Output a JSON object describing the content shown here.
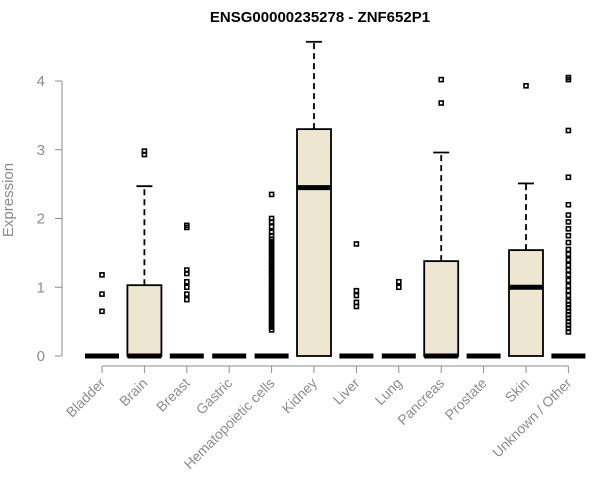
{
  "chart_data": {
    "type": "boxplot",
    "title": "ENSG00000235278 - ZNF652P1",
    "ylabel": "Expression",
    "xlabel": "",
    "ylim": [
      0,
      4.5
    ],
    "yticks": [
      0,
      1,
      2,
      3,
      4
    ],
    "box_fill": "#ede7d2",
    "axis_color": "#8c8c8c",
    "categories": [
      "Bladder",
      "Brain",
      "Breast",
      "Gastric",
      "Hematopoietic cells",
      "Kidney",
      "Liver",
      "Lung",
      "Pancreas",
      "Prostate",
      "Skin",
      "Unknown / Other"
    ],
    "boxes": [
      {
        "q1": 0,
        "median": 0,
        "q3": 0,
        "whisker_low": 0,
        "whisker_high": 0,
        "outliers": [
          0.65,
          0.9,
          1.18
        ]
      },
      {
        "q1": 0,
        "median": 0,
        "q3": 1.03,
        "whisker_low": 0,
        "whisker_high": 2.47,
        "outliers": [
          2.93,
          2.98
        ]
      },
      {
        "q1": 0,
        "median": 0,
        "q3": 0,
        "whisker_low": 0,
        "whisker_high": 0,
        "outliers": [
          0.82,
          0.9,
          1.0,
          1.08,
          1.2,
          1.25,
          1.87,
          1.9
        ]
      },
      {
        "q1": 0,
        "median": 0,
        "q3": 0,
        "whisker_low": 0,
        "whisker_high": 0,
        "outliers": []
      },
      {
        "q1": 0,
        "median": 0,
        "q3": 0,
        "whisker_low": 0,
        "whisker_high": 0,
        "outliers": [
          0.38,
          0.42,
          0.46,
          0.5,
          0.54,
          0.58,
          0.62,
          0.66,
          0.7,
          0.74,
          0.78,
          0.82,
          0.86,
          0.9,
          0.94,
          0.98,
          1.02,
          1.06,
          1.1,
          1.14,
          1.18,
          1.22,
          1.26,
          1.3,
          1.34,
          1.38,
          1.42,
          1.46,
          1.5,
          1.54,
          1.58,
          1.62,
          1.66,
          1.7,
          1.75,
          1.8,
          1.88,
          1.95,
          2.0,
          2.35
        ]
      },
      {
        "q1": 0,
        "median": 2.45,
        "q3": 3.3,
        "whisker_low": 0,
        "whisker_high": 4.57,
        "outliers": []
      },
      {
        "q1": 0,
        "median": 0,
        "q3": 0,
        "whisker_low": 0,
        "whisker_high": 0,
        "outliers": [
          0.72,
          0.78,
          0.88,
          0.95,
          1.63
        ]
      },
      {
        "q1": 0,
        "median": 0,
        "q3": 0,
        "whisker_low": 0,
        "whisker_high": 0,
        "outliers": [
          1.0,
          1.08
        ]
      },
      {
        "q1": 0,
        "median": 0,
        "q3": 1.38,
        "whisker_low": 0,
        "whisker_high": 2.96,
        "outliers": [
          3.68,
          4.02
        ]
      },
      {
        "q1": 0,
        "median": 0,
        "q3": 0,
        "whisker_low": 0,
        "whisker_high": 0,
        "outliers": []
      },
      {
        "q1": 0,
        "median": 1.0,
        "q3": 1.54,
        "whisker_low": 0,
        "whisker_high": 2.51,
        "outliers": [
          3.93
        ]
      },
      {
        "q1": 0,
        "median": 0,
        "q3": 0,
        "whisker_low": 0,
        "whisker_high": 0,
        "outliers": [
          0.35,
          0.4,
          0.45,
          0.5,
          0.55,
          0.6,
          0.65,
          0.7,
          0.75,
          0.8,
          0.88,
          0.95,
          1.02,
          1.1,
          1.18,
          1.25,
          1.32,
          1.4,
          1.48,
          1.55,
          1.65,
          1.75,
          1.85,
          1.95,
          2.05,
          2.2,
          2.6,
          3.28,
          4.02,
          4.05
        ]
      }
    ]
  }
}
